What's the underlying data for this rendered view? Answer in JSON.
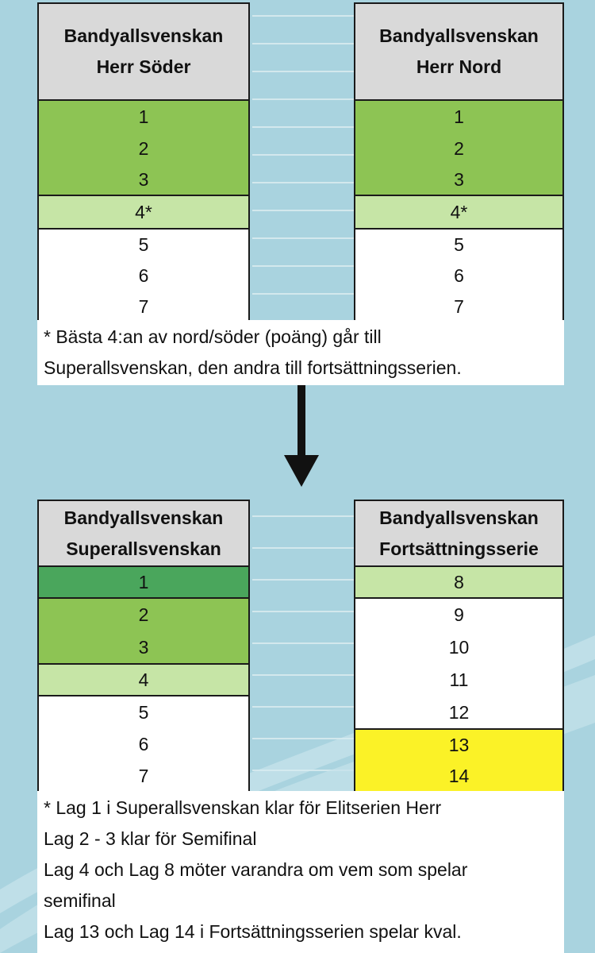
{
  "panels": {
    "south": {
      "title_line1": "Bandyallsvenskan",
      "title_line2": "Herr Söder",
      "rows": [
        "1",
        "2",
        "3",
        "4*",
        "5",
        "6",
        "7"
      ]
    },
    "north": {
      "title_line1": "Bandyallsvenskan",
      "title_line2": "Herr Nord",
      "rows": [
        "1",
        "2",
        "3",
        "4*",
        "5",
        "6",
        "7"
      ]
    },
    "super": {
      "title_line1": "Bandyallsvenskan",
      "title_line2": "Superallsvenskan",
      "rows": [
        "1",
        "2",
        "3",
        "4",
        "5",
        "6",
        "7"
      ]
    },
    "continuation": {
      "title_line1": "Bandyallsvenskan",
      "title_line2": "Fortsättningsserie",
      "rows": [
        "8",
        "9",
        "10",
        "11",
        "12",
        "13",
        "14"
      ]
    }
  },
  "note_top": {
    "lines": [
      "* Bästa 4:an av nord/söder (poäng) går till",
      "Superallsvenskan, den andra till fortsättningsserien."
    ]
  },
  "note_bottom": {
    "lines": [
      "* Lag 1 i Superallsvenskan klar för Elitserien Herr",
      "Lag 2 - 3 klar för  Semifinal",
      "Lag 4 och Lag 8 möter varandra om vem som spelar",
      "semifinal",
      "Lag 13 och Lag 14 i Fortsättningsserien spelar kval."
    ]
  },
  "colors": {
    "background": "#a9d3df",
    "header": "#d9d9d9",
    "qualify_green": "#8dc454",
    "playoff_light_green": "#c6e5a6",
    "promotion_dark_green": "#4aa65c",
    "relegation_yellow": "#fbf227"
  }
}
